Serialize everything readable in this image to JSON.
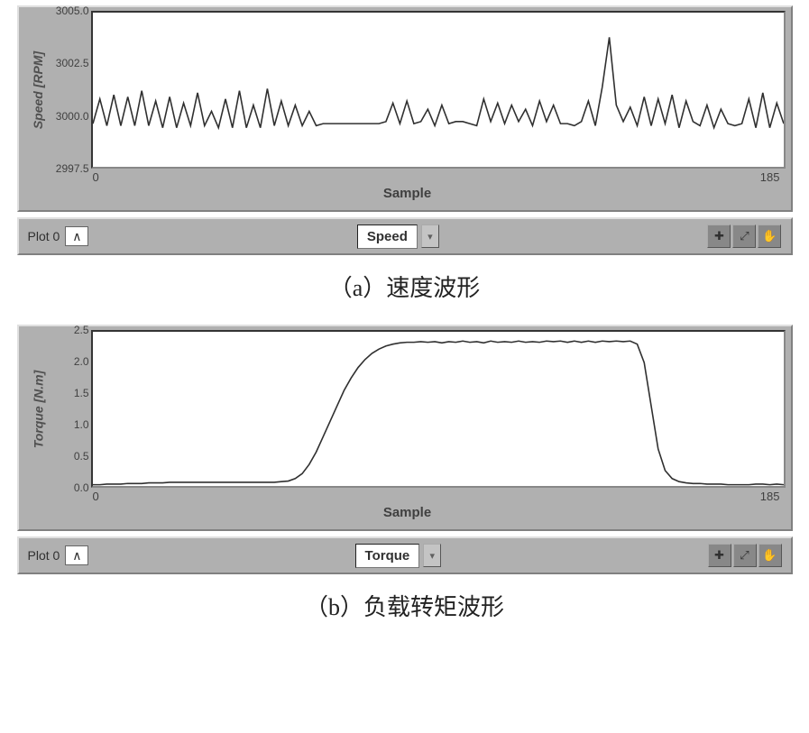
{
  "charts": [
    {
      "id": "speed",
      "type": "line",
      "panel_bg": "#b0b0b0",
      "plot_bg": "#ffffff",
      "line_color": "#303030",
      "line_width": 1.6,
      "ylabel": "Speed [RPM]",
      "ylabel_fontsize": 14,
      "xlabel": "Sample",
      "xlim": [
        0,
        185
      ],
      "ylim": [
        2997.5,
        3005.0
      ],
      "ytick_step": 2.5,
      "yticks": [
        "3005.0",
        "3002.5",
        "3000.0",
        "2997.5"
      ],
      "xticks": [
        "0",
        "185"
      ],
      "legend_label": "Plot 0",
      "center_label": "Speed",
      "caption": "（a）速度波形",
      "data_y": [
        2999.6,
        3000.8,
        2999.5,
        3001.0,
        2999.5,
        3000.9,
        2999.5,
        3001.2,
        2999.5,
        3000.7,
        2999.4,
        3000.9,
        2999.4,
        3000.6,
        2999.5,
        3001.1,
        2999.5,
        3000.2,
        2999.4,
        3000.8,
        2999.4,
        3001.2,
        2999.4,
        3000.5,
        2999.4,
        3001.3,
        2999.5,
        3000.7,
        2999.5,
        3000.5,
        2999.5,
        3000.2,
        2999.5,
        2999.6,
        2999.6,
        2999.6,
        2999.6,
        2999.6,
        2999.6,
        2999.6,
        2999.6,
        2999.6,
        2999.7,
        3000.6,
        2999.6,
        3000.7,
        2999.6,
        2999.7,
        3000.3,
        2999.5,
        3000.5,
        2999.6,
        2999.7,
        2999.7,
        2999.6,
        2999.5,
        3000.8,
        2999.7,
        3000.6,
        2999.6,
        3000.5,
        2999.7,
        3000.3,
        2999.5,
        3000.7,
        2999.7,
        3000.5,
        2999.6,
        2999.6,
        2999.5,
        2999.7,
        3000.7,
        2999.5,
        3001.4,
        3003.8,
        3000.5,
        2999.7,
        3000.4,
        2999.5,
        3000.9,
        2999.5,
        3000.8,
        2999.6,
        3001.0,
        2999.4,
        3000.7,
        2999.7,
        2999.5,
        3000.5,
        2999.4,
        3000.3,
        2999.6,
        2999.5,
        2999.6,
        3000.8,
        2999.4,
        3001.1,
        2999.4,
        3000.6,
        2999.6
      ]
    },
    {
      "id": "torque",
      "type": "line",
      "panel_bg": "#b0b0b0",
      "plot_bg": "#ffffff",
      "line_color": "#303030",
      "line_width": 1.6,
      "ylabel": "Torque [N.m]",
      "ylabel_fontsize": 14,
      "xlabel": "Sample",
      "xlim": [
        0,
        185
      ],
      "ylim": [
        0.0,
        2.5
      ],
      "ytick_step": 0.5,
      "yticks": [
        "2.5",
        "2.0",
        "1.5",
        "1.0",
        "0.5",
        "0.0"
      ],
      "xticks": [
        "0",
        "185"
      ],
      "legend_label": "Plot 0",
      "center_label": "Torque",
      "caption": "（b）负载转矩波形",
      "data_y": [
        0.02,
        0.02,
        0.03,
        0.03,
        0.03,
        0.04,
        0.04,
        0.04,
        0.05,
        0.05,
        0.05,
        0.06,
        0.06,
        0.06,
        0.06,
        0.06,
        0.06,
        0.06,
        0.06,
        0.06,
        0.06,
        0.06,
        0.06,
        0.06,
        0.06,
        0.06,
        0.06,
        0.07,
        0.08,
        0.12,
        0.2,
        0.35,
        0.55,
        0.8,
        1.05,
        1.3,
        1.55,
        1.75,
        1.92,
        2.05,
        2.15,
        2.22,
        2.27,
        2.3,
        2.32,
        2.33,
        2.33,
        2.34,
        2.33,
        2.34,
        2.32,
        2.34,
        2.33,
        2.35,
        2.33,
        2.34,
        2.32,
        2.35,
        2.33,
        2.34,
        2.33,
        2.35,
        2.33,
        2.34,
        2.33,
        2.35,
        2.34,
        2.35,
        2.33,
        2.35,
        2.33,
        2.35,
        2.33,
        2.35,
        2.34,
        2.35,
        2.34,
        2.35,
        2.3,
        2.0,
        1.3,
        0.6,
        0.25,
        0.12,
        0.07,
        0.05,
        0.04,
        0.04,
        0.03,
        0.03,
        0.03,
        0.02,
        0.02,
        0.02,
        0.02,
        0.03,
        0.03,
        0.02,
        0.03,
        0.02
      ]
    }
  ],
  "icons": {
    "plot_glyph": "∧",
    "dropdown_glyph": "▾",
    "tool1": "✚",
    "tool2": "⤢",
    "tool3": "✋"
  }
}
